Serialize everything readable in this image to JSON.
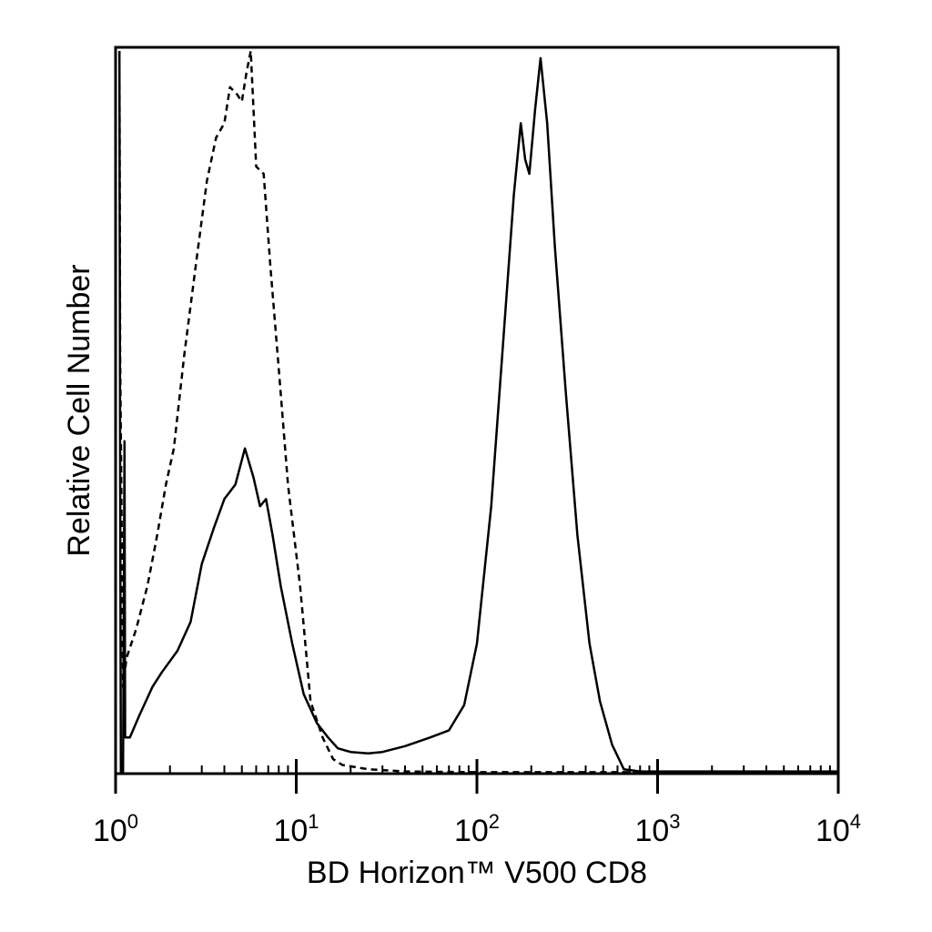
{
  "chart_data": {
    "type": "line",
    "title": "",
    "xlabel": "BD Horizon™ V500 CD8",
    "ylabel": "Relative Cell Number",
    "xscale": "log",
    "xlim": [
      1,
      10000
    ],
    "ylim": [
      0,
      100
    ],
    "grid": false,
    "legend": "none",
    "x_ticks": [
      {
        "base": "10",
        "exp": "0",
        "value": 1
      },
      {
        "base": "10",
        "exp": "1",
        "value": 10
      },
      {
        "base": "10",
        "exp": "2",
        "value": 100
      },
      {
        "base": "10",
        "exp": "3",
        "value": 1000
      },
      {
        "base": "10",
        "exp": "4",
        "value": 10000
      }
    ],
    "series": [
      {
        "style": "solid",
        "points": [
          [
            1.05,
            100
          ],
          [
            1.06,
            42
          ],
          [
            1.07,
            0
          ],
          [
            1.1,
            0
          ],
          [
            1.12,
            46
          ],
          [
            1.13,
            5
          ],
          [
            1.2,
            5
          ],
          [
            1.35,
            8
          ],
          [
            1.6,
            12
          ],
          [
            1.8,
            14
          ],
          [
            2.2,
            17
          ],
          [
            2.6,
            21
          ],
          [
            3.0,
            29
          ],
          [
            3.5,
            34
          ],
          [
            4.0,
            38
          ],
          [
            4.6,
            40
          ],
          [
            5.2,
            45
          ],
          [
            5.8,
            41
          ],
          [
            6.3,
            37
          ],
          [
            6.8,
            38
          ],
          [
            7.4,
            33
          ],
          [
            8.2,
            26
          ],
          [
            9.5,
            18
          ],
          [
            11,
            11
          ],
          [
            13,
            7
          ],
          [
            15,
            5
          ],
          [
            17,
            3.5
          ],
          [
            20,
            3.0
          ],
          [
            25,
            2.8
          ],
          [
            30,
            3.0
          ],
          [
            40,
            3.8
          ],
          [
            55,
            5.0
          ],
          [
            70,
            6.0
          ],
          [
            85,
            9.5
          ],
          [
            100,
            18
          ],
          [
            120,
            37
          ],
          [
            140,
            60
          ],
          [
            160,
            80
          ],
          [
            175,
            90
          ],
          [
            185,
            85
          ],
          [
            195,
            83
          ],
          [
            210,
            92
          ],
          [
            225,
            99
          ],
          [
            245,
            90
          ],
          [
            270,
            73
          ],
          [
            310,
            53
          ],
          [
            360,
            33
          ],
          [
            420,
            18
          ],
          [
            480,
            10
          ],
          [
            560,
            4
          ],
          [
            650,
            0.6
          ],
          [
            800,
            0.3
          ],
          [
            1500,
            0.3
          ],
          [
            3000,
            0.3
          ],
          [
            10000,
            0.3
          ]
        ]
      },
      {
        "style": "dashed",
        "points": [
          [
            1.05,
            100
          ],
          [
            1.06,
            58
          ],
          [
            1.1,
            12
          ],
          [
            1.15,
            16
          ],
          [
            1.3,
            20
          ],
          [
            1.5,
            26
          ],
          [
            1.7,
            33
          ],
          [
            1.9,
            40
          ],
          [
            2.1,
            45
          ],
          [
            2.4,
            58
          ],
          [
            2.8,
            71
          ],
          [
            3.2,
            82
          ],
          [
            3.6,
            88
          ],
          [
            4.0,
            90
          ],
          [
            4.3,
            95
          ],
          [
            4.7,
            94
          ],
          [
            5.0,
            93
          ],
          [
            5.3,
            97
          ],
          [
            5.6,
            100
          ],
          [
            6.0,
            84
          ],
          [
            6.6,
            83
          ],
          [
            7.2,
            70
          ],
          [
            8.0,
            56
          ],
          [
            9.0,
            40
          ],
          [
            10.5,
            26
          ],
          [
            12,
            10
          ],
          [
            14,
            5
          ],
          [
            16,
            2
          ],
          [
            18,
            1.2
          ],
          [
            25,
            0.6
          ],
          [
            40,
            0.3
          ],
          [
            100,
            0.2
          ],
          [
            10000,
            0.2
          ]
        ]
      }
    ]
  }
}
